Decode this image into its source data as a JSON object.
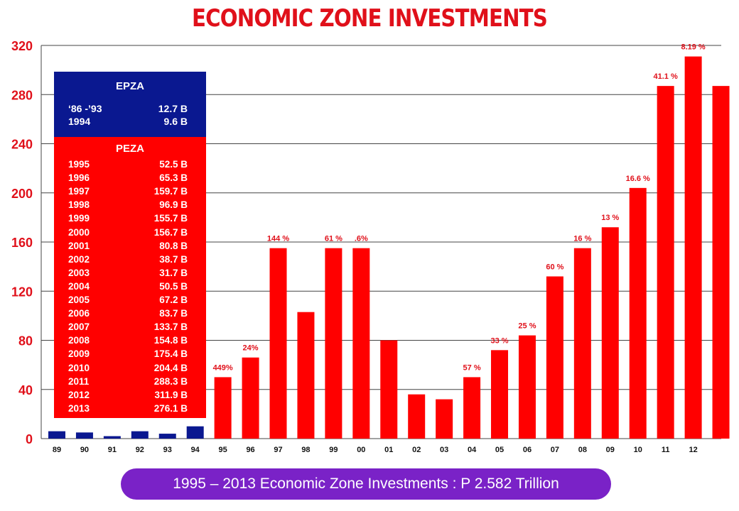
{
  "title": "ECONOMIC ZONE INVESTMENTS",
  "total_banner": "1995 – 2013 Economic Zone Investments : P  2.582 Trillion",
  "colors": {
    "title": "#e0101a",
    "bar_red": "#ff0000",
    "bar_blue": "#0a1890",
    "banner": "#7a22c7",
    "label": "#e0101a"
  },
  "inset": {
    "epza": {
      "heading": "EPZA",
      "rows": [
        {
          "period": "‘86 -’93",
          "value": "12.7 B"
        },
        {
          "period": "1994",
          "value": "9.6 B"
        }
      ]
    },
    "peza": {
      "heading": "PEZA",
      "rows": [
        {
          "year": "1995",
          "value": "52.5 B"
        },
        {
          "year": "1996",
          "value": "65.3 B"
        },
        {
          "year": "1997",
          "value": "159.7 B"
        },
        {
          "year": "1998",
          "value": "96.9 B"
        },
        {
          "year": "1999",
          "value": "155.7 B"
        },
        {
          "year": "2000",
          "value": "156.7 B"
        },
        {
          "year": "2001",
          "value": "80.8 B"
        },
        {
          "year": "2002",
          "value": "38.7 B"
        },
        {
          "year": "2003",
          "value": "31.7 B"
        },
        {
          "year": "2004",
          "value": "50.5 B"
        },
        {
          "year": "2005",
          "value": "67.2 B"
        },
        {
          "year": "2006",
          "value": "83.7 B"
        },
        {
          "year": "2007",
          "value": "133.7 B"
        },
        {
          "year": "2008",
          "value": "154.8 B"
        },
        {
          "year": "2009",
          "value": "175.4 B"
        },
        {
          "year": "2010",
          "value": "204.4 B"
        },
        {
          "year": "2011",
          "value": "288.3 B"
        },
        {
          "year": "2012",
          "value": "311.9 B"
        },
        {
          "year": "2013",
          "value": "276.1 B"
        }
      ]
    }
  },
  "chart_data": {
    "type": "bar",
    "title": "ECONOMIC ZONE INVESTMENTS",
    "xlabel": "",
    "ylabel": "",
    "ylim": [
      0,
      320
    ],
    "yticks": [
      0,
      40,
      80,
      120,
      160,
      200,
      240,
      280,
      320
    ],
    "grid": true,
    "categories": [
      "89",
      "90",
      "91",
      "92",
      "93",
      "94",
      "95",
      "96",
      "97",
      "98",
      "99",
      "00",
      "01",
      "02",
      "03",
      "04",
      "05",
      "06",
      "07",
      "08",
      "09",
      "10",
      "11",
      "12",
      ""
    ],
    "values": [
      6,
      5,
      2,
      6,
      4,
      10,
      50,
      66,
      155,
      103,
      155,
      155,
      80,
      36,
      32,
      50,
      72,
      84,
      132,
      155,
      172,
      204,
      287,
      311,
      287
    ],
    "bar_colors": [
      "#0a1890",
      "#0a1890",
      "#0a1890",
      "#0a1890",
      "#0a1890",
      "#0a1890",
      "#ff0000",
      "#ff0000",
      "#ff0000",
      "#ff0000",
      "#ff0000",
      "#ff0000",
      "#ff0000",
      "#ff0000",
      "#ff0000",
      "#ff0000",
      "#ff0000",
      "#ff0000",
      "#ff0000",
      "#ff0000",
      "#ff0000",
      "#ff0000",
      "#ff0000",
      "#ff0000",
      "#ff0000"
    ],
    "data_labels": [
      "",
      "",
      "",
      "",
      "",
      "",
      "449%",
      "24%",
      "144 %",
      "",
      "61 %",
      ".6%",
      "",
      "",
      "",
      "57 %",
      "33 %",
      "25 %",
      "60 %",
      "16 %",
      "13 %",
      "16.6 %",
      "41.1 %",
      "8.19 %",
      ""
    ]
  }
}
